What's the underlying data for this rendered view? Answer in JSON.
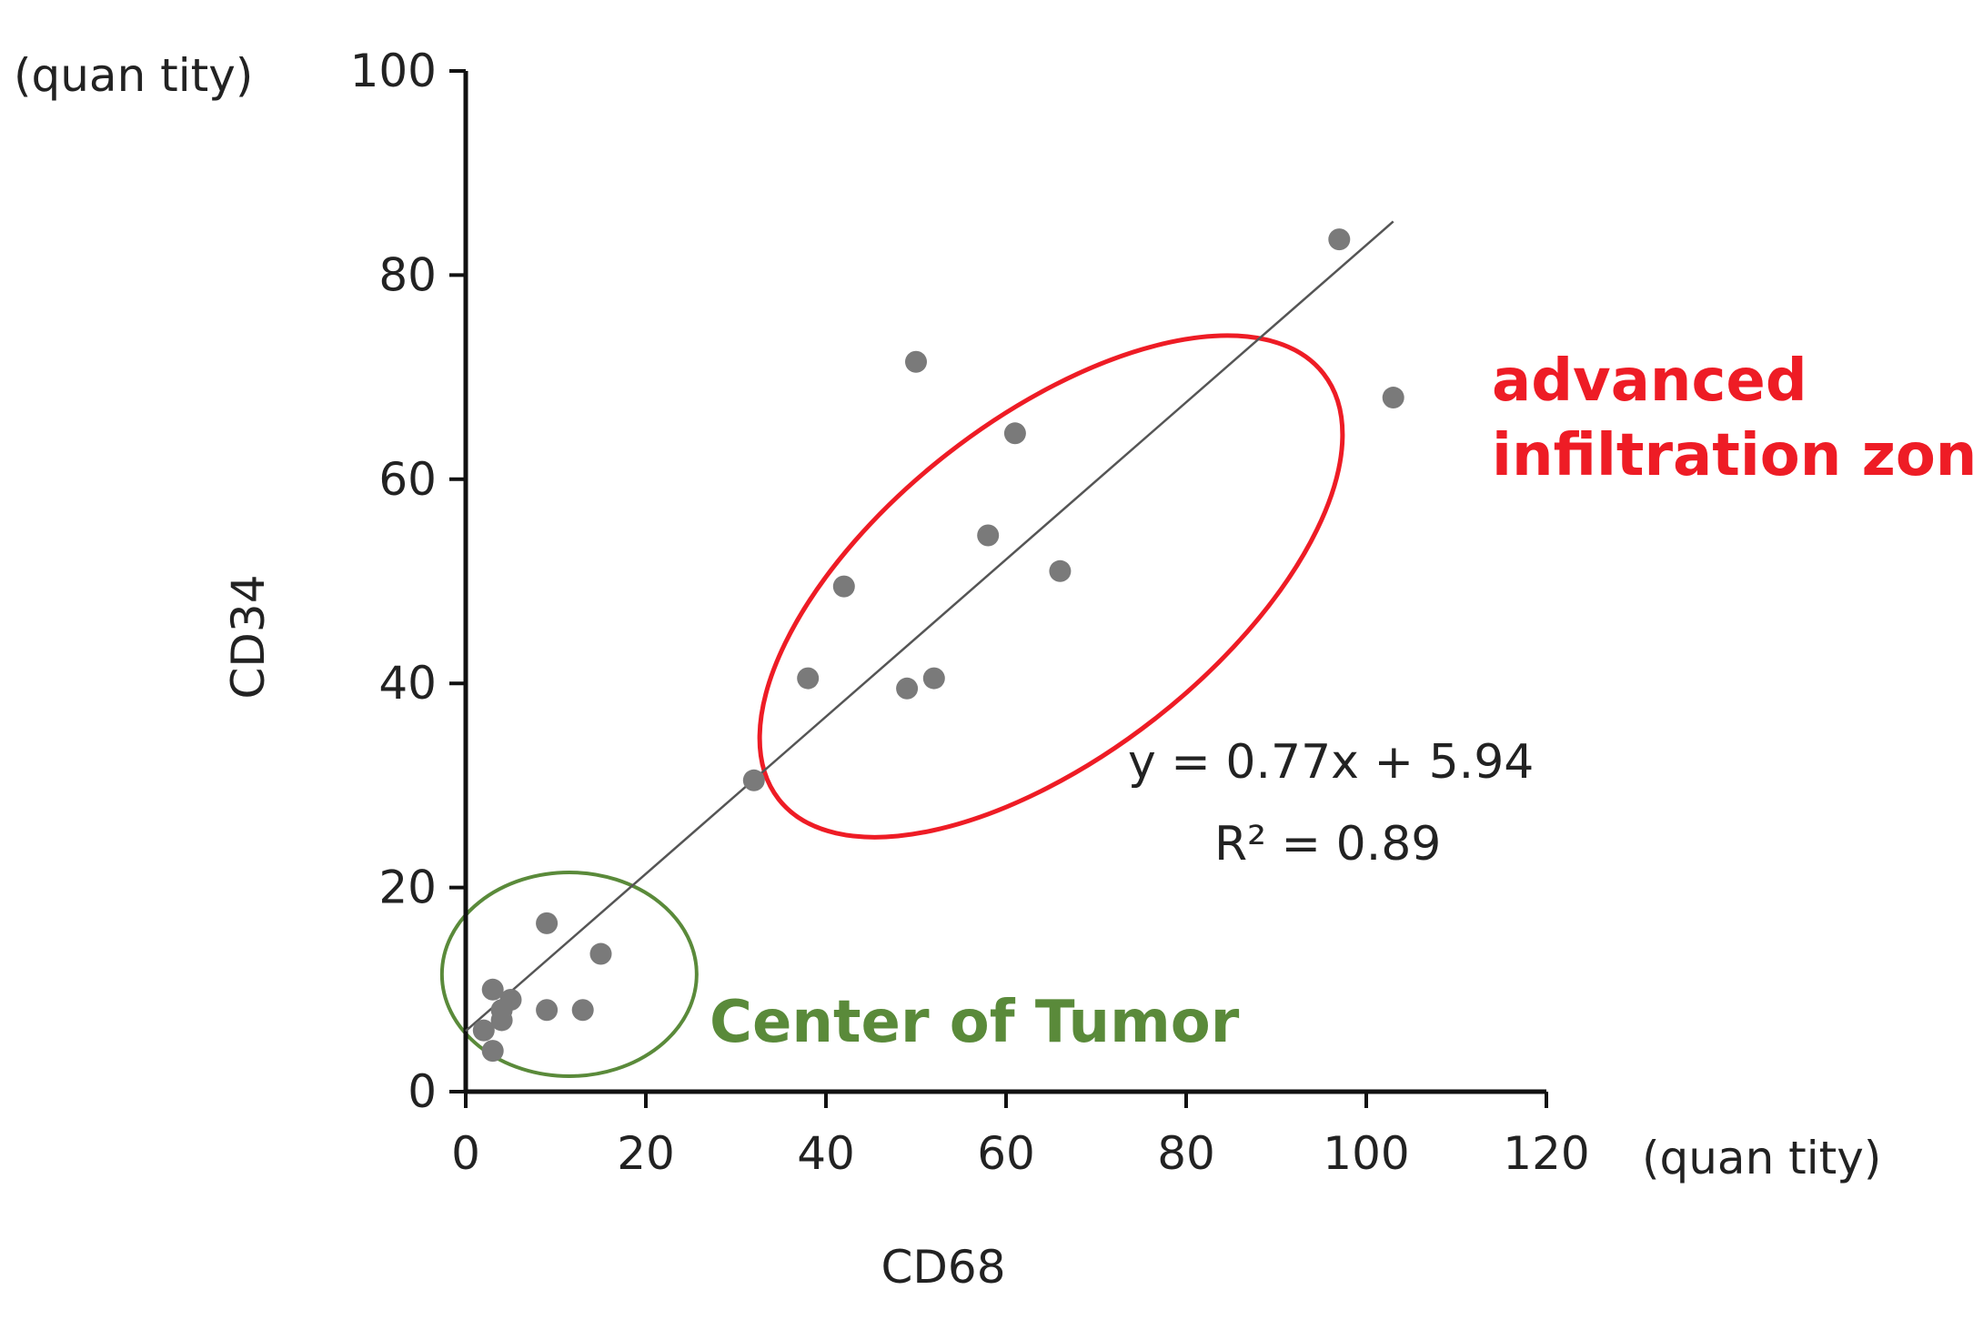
{
  "chart_data": {
    "type": "scatter",
    "title": "",
    "xlabel": "CD68",
    "ylabel": "CD34",
    "x_unit": "(quan tity)",
    "y_unit": "(quan tity)",
    "xlim": [
      0,
      120
    ],
    "ylim": [
      0,
      100
    ],
    "x_ticks": [
      "0",
      "20",
      "40",
      "60",
      "80",
      "100",
      "120"
    ],
    "y_ticks": [
      "0",
      "20",
      "40",
      "60",
      "80",
      "100"
    ],
    "grid": false,
    "points": [
      {
        "x": 2,
        "y": 6
      },
      {
        "x": 3,
        "y": 4
      },
      {
        "x": 3,
        "y": 10
      },
      {
        "x": 4,
        "y": 7
      },
      {
        "x": 4,
        "y": 8
      },
      {
        "x": 5,
        "y": 9
      },
      {
        "x": 9,
        "y": 8
      },
      {
        "x": 9,
        "y": 16.5
      },
      {
        "x": 13,
        "y": 8
      },
      {
        "x": 15,
        "y": 13.5
      },
      {
        "x": 32,
        "y": 30.5
      },
      {
        "x": 38,
        "y": 40.5
      },
      {
        "x": 42,
        "y": 49.5
      },
      {
        "x": 49,
        "y": 39.5
      },
      {
        "x": 50,
        "y": 71.5
      },
      {
        "x": 52,
        "y": 40.5
      },
      {
        "x": 58,
        "y": 54.5
      },
      {
        "x": 61,
        "y": 64.5
      },
      {
        "x": 66,
        "y": 51
      },
      {
        "x": 97,
        "y": 83.5
      },
      {
        "x": 103,
        "y": 68
      }
    ],
    "trendline": {
      "slope": 0.77,
      "intercept": 5.94,
      "x_range": [
        0,
        103
      ]
    },
    "equation": "y = 0.77x + 5.94",
    "r_squared": "R² = 0.89",
    "marker_color": "#7a7a7a",
    "annotations": [
      {
        "text_lines": [
          "advanced",
          "infiltration zone"
        ],
        "color": "#ee1c25",
        "region": {
          "cx": 65,
          "cy": 49.5,
          "rx": 47,
          "ry": 19,
          "rotation_deg": 40
        }
      },
      {
        "text_lines": [
          "Center of Tumor"
        ],
        "color": "#5a8a3a",
        "region": {
          "cx": 11.5,
          "cy": 11.5,
          "rx": 14,
          "ry": 10,
          "rotation_deg": 0
        }
      }
    ]
  }
}
